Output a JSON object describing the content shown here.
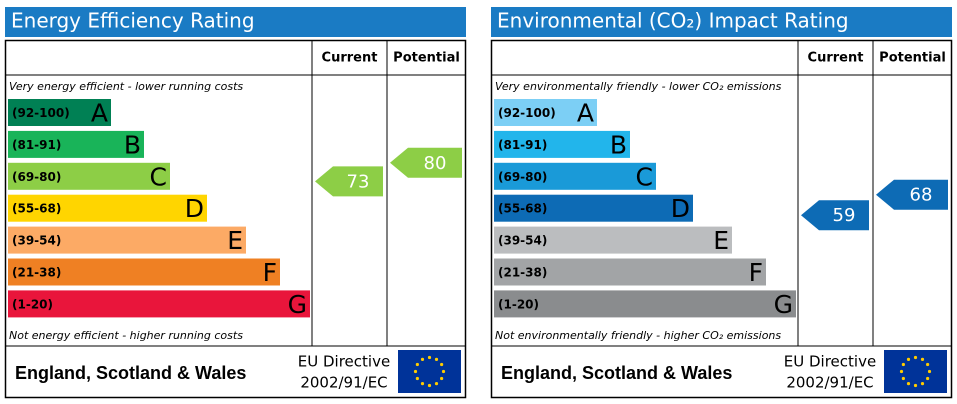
{
  "panels": [
    {
      "title": "Energy Efficiency Rating",
      "columns": [
        "Current",
        "Potential"
      ],
      "top_note": "Very energy efficient - lower running costs",
      "bottom_note": "Not energy efficient - higher running costs",
      "bands": [
        {
          "range": "(92-100)",
          "letter": "A",
          "color": "#008054"
        },
        {
          "range": "(81-91)",
          "letter": "B",
          "color": "#19b459"
        },
        {
          "range": "(69-80)",
          "letter": "C",
          "color": "#8dce46"
        },
        {
          "range": "(55-68)",
          "letter": "D",
          "color": "#ffd500"
        },
        {
          "range": "(39-54)",
          "letter": "E",
          "color": "#fcaa65"
        },
        {
          "range": "(21-38)",
          "letter": "F",
          "color": "#ef8023"
        },
        {
          "range": "(1-20)",
          "letter": "G",
          "color": "#e9153b"
        }
      ],
      "current": 73,
      "potential": 80,
      "footer": {
        "region": "England, Scotland & Wales",
        "directive": [
          "EU Directive",
          "2002/91/EC"
        ]
      }
    },
    {
      "title": "Environmental (CO₂) Impact Rating",
      "columns": [
        "Current",
        "Potential"
      ],
      "top_note": "Very environmentally friendly - lower CO₂ emissions",
      "bottom_note": "Not environmentally friendly - higher CO₂ emissions",
      "bands": [
        {
          "range": "(92-100)",
          "letter": "A",
          "color": "#7ccff5"
        },
        {
          "range": "(81-91)",
          "letter": "B",
          "color": "#22b5eb"
        },
        {
          "range": "(69-80)",
          "letter": "C",
          "color": "#1a9ad8"
        },
        {
          "range": "(55-68)",
          "letter": "D",
          "color": "#0d6bb5"
        },
        {
          "range": "(39-54)",
          "letter": "E",
          "color": "#bbbdbf"
        },
        {
          "range": "(21-38)",
          "letter": "F",
          "color": "#a2a4a6"
        },
        {
          "range": "(1-20)",
          "letter": "G",
          "color": "#8a8c8e"
        }
      ],
      "current": 59,
      "potential": 68,
      "footer": {
        "region": "England, Scotland & Wales",
        "directive": [
          "EU Directive",
          "2002/91/EC"
        ]
      }
    }
  ]
}
